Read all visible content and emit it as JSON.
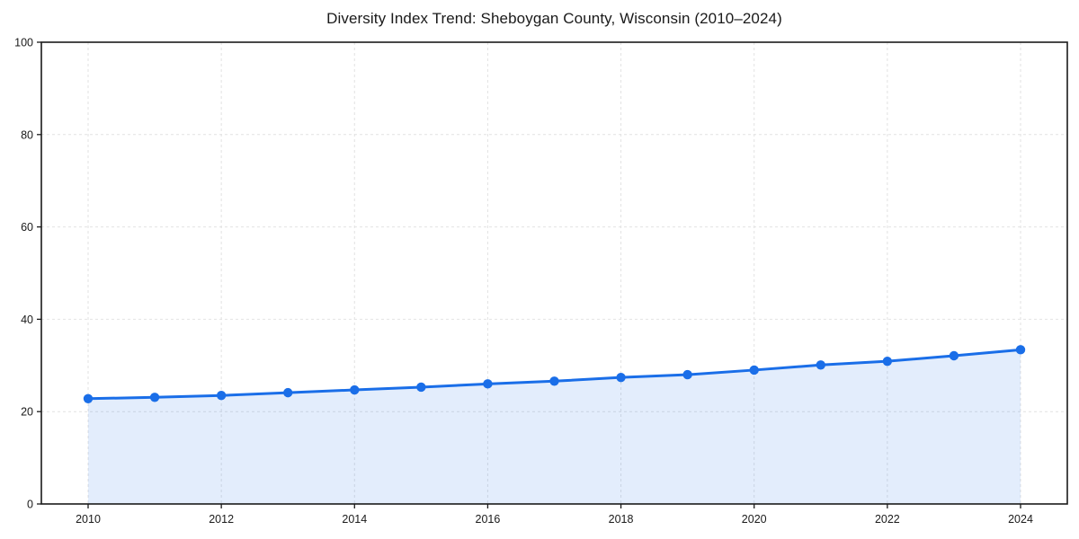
{
  "chart_data": {
    "type": "line",
    "title": "Diversity Index Trend: Sheboygan County, Wisconsin (2010–2024)",
    "xlabel": "",
    "ylabel": "",
    "x": [
      2010,
      2011,
      2012,
      2013,
      2014,
      2015,
      2016,
      2017,
      2018,
      2019,
      2020,
      2021,
      2022,
      2023,
      2024
    ],
    "series": [
      {
        "name": "Diversity Index",
        "values": [
          22.8,
          23.1,
          23.5,
          24.1,
          24.7,
          25.3,
          26.0,
          26.6,
          27.4,
          28.0,
          29.0,
          30.1,
          30.9,
          32.1,
          33.4
        ]
      }
    ],
    "xticks": [
      2010,
      2012,
      2014,
      2016,
      2018,
      2020,
      2022,
      2024
    ],
    "yticks": [
      0,
      20,
      40,
      60,
      80,
      100
    ],
    "ylim": [
      0,
      100
    ],
    "grid": "dashed",
    "legend": "none",
    "area_fill": true,
    "marker": "circle",
    "colors": {
      "line": "#1a6ee8",
      "marker": "#1a6ee8",
      "fill": "#1a6ee8",
      "fill_opacity": 0.12,
      "grid": "#e2e2e2",
      "border": "#1a1a1a",
      "text": "#1a1a1a",
      "background": "#ffffff"
    }
  }
}
